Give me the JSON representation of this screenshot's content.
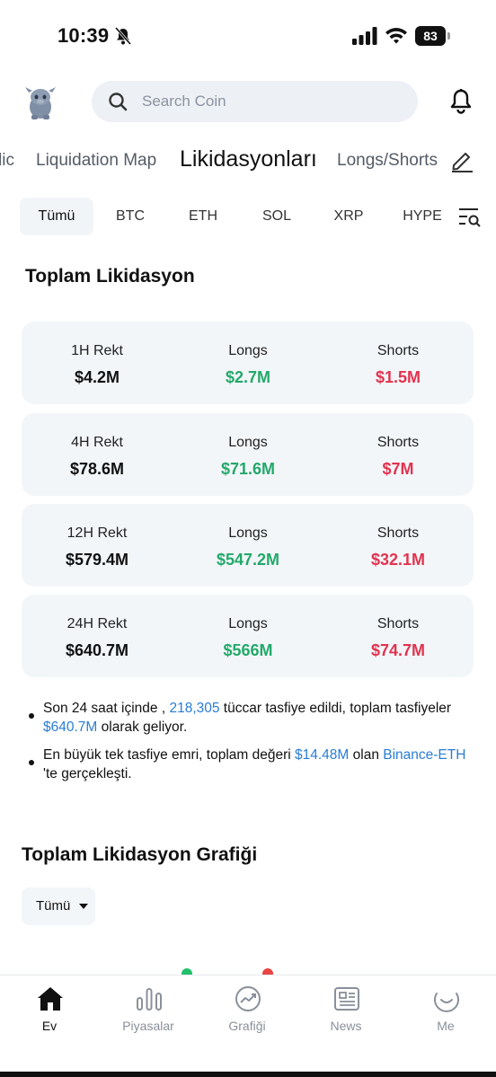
{
  "status": {
    "time": "10:39",
    "battery": "83"
  },
  "header": {
    "search_placeholder": "Search Coin"
  },
  "toptabs": [
    {
      "label": "lic"
    },
    {
      "label": "Liquidation Map"
    },
    {
      "label": "Likidasyonları"
    },
    {
      "label": "Longs/Shorts"
    }
  ],
  "chips": [
    "Tümü",
    "BTC",
    "ETH",
    "SOL",
    "XRP",
    "HYPE"
  ],
  "section": {
    "title": "Toplam Likidasyon"
  },
  "cards": [
    {
      "label": "1H  Rekt",
      "total": "$4.2M",
      "longs_label": "Longs",
      "longs": "$2.7M",
      "shorts_label": "Shorts",
      "shorts": "$1.5M"
    },
    {
      "label": "4H Rekt",
      "total": "$78.6M",
      "longs_label": "Longs",
      "longs": "$71.6M",
      "shorts_label": "Shorts",
      "shorts": "$7M"
    },
    {
      "label": "12H Rekt",
      "total": "$579.4M",
      "longs_label": "Longs",
      "longs": "$547.2M",
      "shorts_label": "Shorts",
      "shorts": "$32.1M"
    },
    {
      "label": "24H Rekt",
      "total": "$640.7M",
      "longs_label": "Longs",
      "longs": "$566M",
      "shorts_label": "Shorts",
      "shorts": "$74.7M"
    }
  ],
  "bullets": {
    "b1_pre": "Son 24 saat içinde , ",
    "b1_traders": "218,305",
    "b1_mid": " tüccar tasfiye edildi, toplam tasfiyeler ",
    "b1_total": "$640.7M",
    "b1_post": " olarak geliyor.",
    "b2_pre": "En büyük tek tasfiye emri, toplam değeri ",
    "b2_value": "$14.48M",
    "b2_mid": " olan ",
    "b2_pair": "Binance-ETH",
    "b2_post": " 'te gerçekleşti."
  },
  "chart_section": {
    "title": "Toplam Likidasyon Grafiği",
    "dropdown": "Tümü"
  },
  "legend_colors": {
    "longs": "#23c16b",
    "shorts": "#e84545"
  },
  "nav": [
    {
      "label": "Ev",
      "icon": "home-icon"
    },
    {
      "label": "Piyasalar",
      "icon": "bar-chart-icon"
    },
    {
      "label": "Grafiği",
      "icon": "trend-icon"
    },
    {
      "label": "News",
      "icon": "news-icon"
    },
    {
      "label": "Me",
      "icon": "profile-icon"
    }
  ]
}
